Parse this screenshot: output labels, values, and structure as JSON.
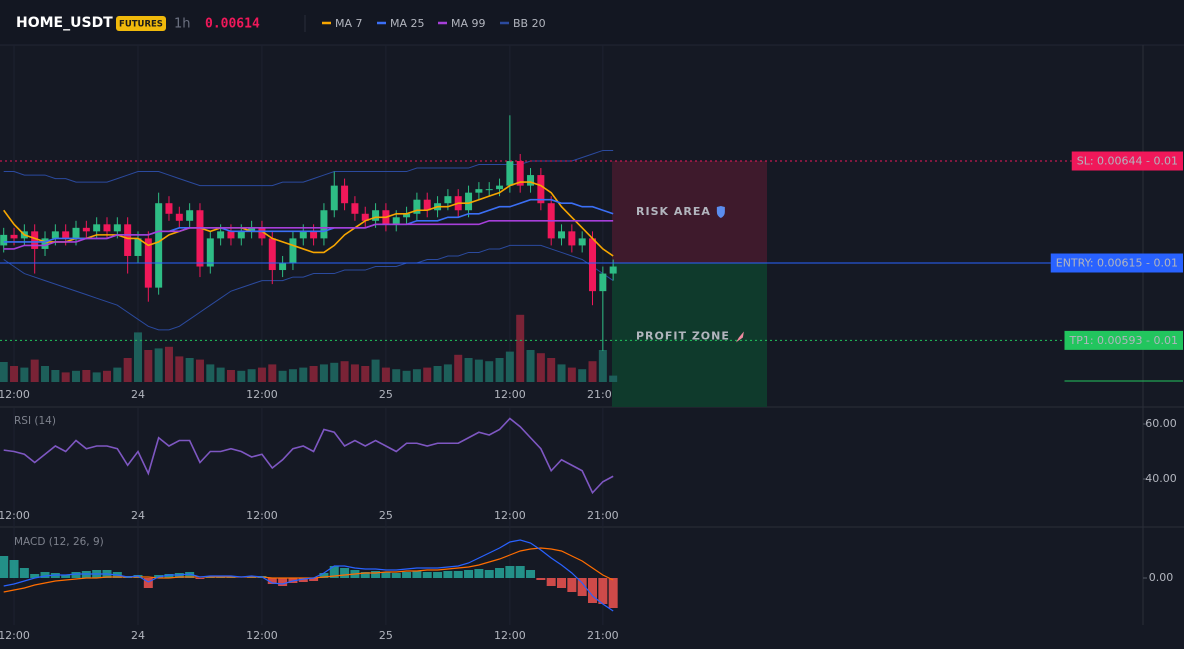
{
  "chart_data": [
    {
      "type": "candlestick",
      "title": "HOME_USDT",
      "badge": "FUTURES",
      "interval": "1h",
      "last_price": 0.00614,
      "categories": [
        null,
        "12:00",
        null,
        null,
        null,
        null,
        null,
        null,
        null,
        null,
        null,
        null,
        null,
        "24",
        null,
        null,
        null,
        null,
        null,
        null,
        null,
        null,
        null,
        null,
        null,
        "12:00",
        null,
        null,
        null,
        null,
        null,
        null,
        null,
        null,
        null,
        null,
        null,
        "25",
        null,
        null,
        null,
        null,
        null,
        null,
        null,
        null,
        null,
        null,
        null,
        "12:00",
        null,
        null,
        null,
        null,
        null,
        null,
        null,
        null,
        "21:00",
        null
      ],
      "open": [
        0.0062,
        0.00623,
        0.00622,
        0.00624,
        0.00619,
        0.00622,
        0.00624,
        0.00622,
        0.00625,
        0.00624,
        0.00626,
        0.00624,
        0.00626,
        0.00617,
        0.00622,
        0.00608,
        0.00632,
        0.00629,
        0.00627,
        0.0063,
        0.00614,
        0.00622,
        0.00624,
        0.00622,
        0.00624,
        0.00625,
        0.00622,
        0.00613,
        0.00615,
        0.00622,
        0.00624,
        0.00622,
        0.0063,
        0.00637,
        0.00632,
        0.00629,
        0.00627,
        0.0063,
        0.00626,
        0.00628,
        0.00629,
        0.00633,
        0.0063,
        0.00632,
        0.00634,
        0.0063,
        0.00635,
        0.00636,
        0.00636,
        0.00637,
        0.00644,
        0.00637,
        0.0064,
        0.00632,
        0.00622,
        0.00624,
        0.0062,
        0.00622,
        0.00607,
        0.00612
      ],
      "high": [
        0.00625,
        0.00625,
        0.00626,
        0.00626,
        0.00624,
        0.00626,
        0.00626,
        0.00627,
        0.00627,
        0.00628,
        0.00628,
        0.00628,
        0.00628,
        0.00624,
        0.00624,
        0.00635,
        0.00634,
        0.00631,
        0.00632,
        0.00632,
        0.00624,
        0.00626,
        0.00626,
        0.00626,
        0.00627,
        0.00627,
        0.00624,
        0.00617,
        0.00624,
        0.00626,
        0.00626,
        0.00632,
        0.00641,
        0.00639,
        0.00634,
        0.00631,
        0.00632,
        0.00632,
        0.0063,
        0.00631,
        0.00635,
        0.00635,
        0.00634,
        0.00636,
        0.00636,
        0.00637,
        0.00638,
        0.00638,
        0.00639,
        0.00657,
        0.00646,
        0.00642,
        0.00642,
        0.00634,
        0.00626,
        0.00626,
        0.00624,
        0.00624,
        0.00614,
        0.00616
      ],
      "low": [
        0.00618,
        0.0062,
        0.0062,
        0.00612,
        0.00617,
        0.0062,
        0.0062,
        0.0062,
        0.00622,
        0.00622,
        0.00622,
        0.00622,
        0.00612,
        0.00615,
        0.00604,
        0.00606,
        0.00627,
        0.00625,
        0.00625,
        0.00611,
        0.00612,
        0.0062,
        0.0062,
        0.0062,
        0.00622,
        0.0062,
        0.00609,
        0.00611,
        0.00613,
        0.0062,
        0.0062,
        0.0062,
        0.00628,
        0.0063,
        0.00627,
        0.00625,
        0.00625,
        0.00624,
        0.00624,
        0.00626,
        0.00627,
        0.00628,
        0.00628,
        0.0063,
        0.00628,
        0.00628,
        0.00633,
        0.00634,
        0.00634,
        0.00635,
        0.00635,
        0.00635,
        0.0063,
        0.0062,
        0.0062,
        0.00618,
        0.00618,
        0.00603,
        0.0059,
        0.0061
      ],
      "close": [
        0.00623,
        0.00622,
        0.00624,
        0.00619,
        0.00622,
        0.00624,
        0.00622,
        0.00625,
        0.00624,
        0.00626,
        0.00624,
        0.00626,
        0.00617,
        0.00622,
        0.00608,
        0.00632,
        0.00629,
        0.00627,
        0.0063,
        0.00614,
        0.00622,
        0.00624,
        0.00622,
        0.00624,
        0.00625,
        0.00622,
        0.00613,
        0.00615,
        0.00622,
        0.00624,
        0.00622,
        0.0063,
        0.00637,
        0.00632,
        0.00629,
        0.00627,
        0.0063,
        0.00626,
        0.00628,
        0.00629,
        0.00633,
        0.0063,
        0.00632,
        0.00634,
        0.0063,
        0.00635,
        0.00636,
        0.00636,
        0.00637,
        0.00644,
        0.00637,
        0.0064,
        0.00632,
        0.00622,
        0.00624,
        0.0062,
        0.00622,
        0.00607,
        0.00612,
        0.00614
      ],
      "up_color": "#2ebd85",
      "down_color": "#f0185a",
      "ylim": [
        0.0058,
        0.0068
      ],
      "volume": {
        "ylim": [
          0,
          100
        ],
        "up_color": "#1d5f5a",
        "down_color": "#7a2336",
        "values": [
          25,
          20,
          18,
          28,
          20,
          15,
          12,
          14,
          15,
          12,
          14,
          18,
          30,
          62,
          40,
          42,
          44,
          32,
          30,
          28,
          22,
          18,
          15,
          14,
          16,
          18,
          22,
          14,
          16,
          18,
          20,
          22,
          24,
          26,
          22,
          20,
          28,
          18,
          16,
          14,
          16,
          18,
          20,
          22,
          34,
          30,
          28,
          26,
          30,
          38,
          84,
          40,
          36,
          30,
          22,
          18,
          16,
          26,
          40,
          8
        ]
      },
      "series": [
        {
          "name": "MA 7",
          "color": "#f7a600",
          "values": [
            0.0063,
            0.00626,
            0.00623,
            0.00622,
            0.00621,
            0.00621,
            0.00621,
            0.00622,
            0.00622,
            0.00623,
            0.00623,
            0.00623,
            0.00622,
            0.00622,
            0.0062,
            0.00621,
            0.00623,
            0.00624,
            0.00625,
            0.00625,
            0.00624,
            0.00625,
            0.00625,
            0.00625,
            0.00624,
            0.00624,
            0.00622,
            0.00621,
            0.0062,
            0.00619,
            0.00618,
            0.00618,
            0.0062,
            0.00623,
            0.00625,
            0.00627,
            0.00628,
            0.00628,
            0.00629,
            0.00629,
            0.0063,
            0.0063,
            0.00631,
            0.00631,
            0.00632,
            0.00632,
            0.00633,
            0.00634,
            0.00635,
            0.00637,
            0.00638,
            0.00638,
            0.00637,
            0.00635,
            0.00631,
            0.00628,
            0.00625,
            0.00622,
            0.00619,
            0.00617
          ]
        },
        {
          "name": "MA 25",
          "color": "#3b6ff5",
          "values": [
            0.00621,
            0.00621,
            0.00621,
            0.00621,
            0.00621,
            0.00622,
            0.00622,
            0.00622,
            0.00622,
            0.00622,
            0.00622,
            0.00623,
            0.00623,
            0.00623,
            0.00623,
            0.00624,
            0.00624,
            0.00625,
            0.00625,
            0.00625,
            0.00625,
            0.00625,
            0.00624,
            0.00624,
            0.00624,
            0.00624,
            0.00624,
            0.00624,
            0.00624,
            0.00624,
            0.00624,
            0.00624,
            0.00625,
            0.00625,
            0.00625,
            0.00625,
            0.00626,
            0.00626,
            0.00626,
            0.00626,
            0.00627,
            0.00627,
            0.00627,
            0.00628,
            0.00628,
            0.00629,
            0.00629,
            0.0063,
            0.00631,
            0.00631,
            0.00632,
            0.00633,
            0.00633,
            0.00633,
            0.00632,
            0.00632,
            0.00631,
            0.00631,
            0.0063,
            0.00629
          ]
        },
        {
          "name": "MA 99",
          "color": "#a63fd9",
          "values": [
            0.00619,
            0.00619,
            0.0062,
            0.0062,
            0.0062,
            0.00621,
            0.00621,
            0.00621,
            0.00622,
            0.00622,
            0.00622,
            0.00623,
            0.00623,
            0.00623,
            0.00623,
            0.00624,
            0.00624,
            0.00624,
            0.00625,
            0.00625,
            0.00625,
            0.00625,
            0.00625,
            0.00625,
            0.00625,
            0.00625,
            0.00625,
            0.00625,
            0.00625,
            0.00625,
            0.00625,
            0.00625,
            0.00625,
            0.00625,
            0.00625,
            0.00625,
            0.00626,
            0.00626,
            0.00626,
            0.00626,
            0.00626,
            0.00626,
            0.00626,
            0.00626,
            0.00626,
            0.00626,
            0.00626,
            0.00627,
            0.00627,
            0.00627,
            0.00627,
            0.00627,
            0.00627,
            0.00627,
            0.00627,
            0.00627,
            0.00627,
            0.00627,
            0.00627,
            0.00627
          ]
        },
        {
          "name": "BB 20",
          "color": "#2b4a9e",
          "upper": [
            0.00641,
            0.00641,
            0.0064,
            0.0064,
            0.0064,
            0.00639,
            0.00639,
            0.00638,
            0.00638,
            0.00638,
            0.00638,
            0.00639,
            0.0064,
            0.00641,
            0.00641,
            0.00641,
            0.0064,
            0.00639,
            0.00638,
            0.00637,
            0.00637,
            0.00637,
            0.00637,
            0.00637,
            0.00637,
            0.00637,
            0.00637,
            0.00638,
            0.00638,
            0.00638,
            0.00639,
            0.0064,
            0.00641,
            0.00641,
            0.00641,
            0.00641,
            0.00641,
            0.00641,
            0.00641,
            0.00641,
            0.00642,
            0.00642,
            0.00642,
            0.00642,
            0.00642,
            0.00642,
            0.00643,
            0.00643,
            0.00643,
            0.00643,
            0.00643,
            0.00644,
            0.00644,
            0.00644,
            0.00644,
            0.00644,
            0.00645,
            0.00646,
            0.00647,
            0.00647
          ],
          "lower": [
            0.00616,
            0.00614,
            0.00612,
            0.00611,
            0.0061,
            0.00609,
            0.00608,
            0.00607,
            0.00606,
            0.00605,
            0.00604,
            0.00603,
            0.00601,
            0.00599,
            0.00597,
            0.00596,
            0.00596,
            0.00597,
            0.00599,
            0.00601,
            0.00603,
            0.00605,
            0.00607,
            0.00608,
            0.00609,
            0.0061,
            0.0061,
            0.0061,
            0.00611,
            0.00611,
            0.00612,
            0.00612,
            0.00612,
            0.00613,
            0.00613,
            0.00613,
            0.00614,
            0.00614,
            0.00614,
            0.00615,
            0.00615,
            0.00616,
            0.00616,
            0.00617,
            0.00617,
            0.00618,
            0.00618,
            0.00619,
            0.00619,
            0.0062,
            0.0062,
            0.0062,
            0.0062,
            0.00619,
            0.00618,
            0.00617,
            0.00616,
            0.00614,
            0.00612,
            0.0061
          ]
        }
      ],
      "levels": [
        {
          "label": "SL: 0.00644 - 0.01",
          "value": 0.00644,
          "color": "#f0185a",
          "text_color": "#ffffff",
          "line": "dotted"
        },
        {
          "label": "ENTRY: 0.00615 - 0.01",
          "value": 0.00615,
          "color": "#2962ff",
          "text_color": "#ffffff",
          "line": "solid"
        },
        {
          "label": "TP1: 0.00593 - 0.01",
          "value": 0.00593,
          "color": "#22c55e",
          "text_color": "#0b1a10",
          "line": "dotted"
        }
      ],
      "zones": [
        {
          "label": "RISK AREA",
          "color": "#f0185a",
          "fill": "#3e1a2c",
          "icon": "shield"
        },
        {
          "label": "PROFIT ZONE",
          "color": "#22c55e",
          "fill": "#0f3a2c",
          "icon": "rocket"
        }
      ]
    },
    {
      "type": "line",
      "title": "RSI (14)",
      "color": "#7e57c2",
      "ylim": [
        25,
        66
      ],
      "yticks": [
        {
          "value": 60,
          "label": "60.00"
        },
        {
          "value": 40,
          "label": "40.00"
        }
      ],
      "values": [
        50.5,
        50,
        49,
        46,
        49,
        52,
        50,
        54,
        51,
        52,
        52,
        51,
        45,
        50,
        42,
        55,
        52,
        54,
        54,
        46,
        50,
        50,
        51,
        50,
        48,
        49,
        44,
        47,
        51,
        52,
        50,
        58,
        57,
        52,
        54,
        52,
        54,
        52,
        50,
        53,
        53,
        52,
        53,
        53,
        53,
        55,
        57,
        56,
        58,
        62,
        59,
        55,
        51,
        43,
        47,
        45,
        43,
        35,
        39,
        41
      ]
    },
    {
      "type": "macd",
      "title": "MACD (12, 26, 9)",
      "ylim": [
        -4.7e-05,
        5e-05
      ],
      "yticks": [
        {
          "value": 0,
          "label": "0.00"
        }
      ],
      "up_color": "#26a69a",
      "down_color": "#ef5350",
      "histogram": [
        2.2e-05,
        1.8e-05,
        1e-05,
        4e-06,
        6e-06,
        5e-06,
        3e-06,
        6e-06,
        7e-06,
        8e-06,
        8e-06,
        6e-06,
        2e-06,
        3e-06,
        -1e-05,
        3e-06,
        4e-06,
        5e-06,
        6e-06,
        -1e-06,
        2e-06,
        1e-06,
        1e-06,
        0,
        1e-06,
        2e-06,
        -6e-06,
        -8e-06,
        -5e-06,
        -4e-06,
        -3e-06,
        5e-06,
        1.2e-05,
        1e-05,
        8e-06,
        6e-06,
        7e-06,
        6e-06,
        5e-06,
        6e-06,
        7e-06,
        6e-06,
        6e-06,
        7e-06,
        7e-06,
        8e-06,
        9e-06,
        8e-06,
        1e-05,
        1.2e-05,
        1.2e-05,
        8e-06,
        -2e-06,
        -8e-06,
        -1e-05,
        -1.4e-05,
        -1.8e-05,
        -2.5e-05,
        -2.6e-05,
        -3e-05
      ],
      "macd": {
        "color": "#2962ff",
        "values": [
          -8e-06,
          -6e-06,
          -3e-06,
          0,
          2e-06,
          3e-06,
          3e-06,
          4e-06,
          4e-06,
          4e-06,
          4e-06,
          3e-06,
          1e-06,
          2e-06,
          -4e-06,
          1e-06,
          3e-06,
          3e-06,
          4e-06,
          1e-06,
          2e-06,
          2e-06,
          2e-06,
          1e-06,
          2e-06,
          1e-06,
          -5e-06,
          -6e-06,
          -3e-06,
          -1e-06,
          0,
          5e-06,
          1.2e-05,
          1.2e-05,
          1e-05,
          9e-06,
          9e-06,
          8e-06,
          8e-06,
          9e-06,
          1e-05,
          1e-05,
          1e-05,
          1.1e-05,
          1.2e-05,
          1.5e-05,
          2e-05,
          2.5e-05,
          3e-05,
          3.6e-05,
          3.8e-05,
          3.5e-05,
          2.8e-05,
          2e-05,
          1.3e-05,
          5e-06,
          -5e-06,
          -1.8e-05,
          -2.6e-05,
          -3.3e-05
        ]
      },
      "signal": {
        "color": "#ff6d00",
        "values": [
          -1.4e-05,
          -1.2e-05,
          -1e-05,
          -7e-06,
          -5e-06,
          -3e-06,
          -2e-06,
          -1e-06,
          0,
          0,
          1e-06,
          1e-06,
          1e-06,
          1e-06,
          1e-06,
          0,
          0,
          1e-06,
          1e-06,
          1e-06,
          1e-06,
          1e-06,
          1e-06,
          1e-06,
          1e-06,
          1e-06,
          0,
          0,
          0,
          0,
          0,
          1e-06,
          2e-06,
          3e-06,
          4e-06,
          5e-06,
          5e-06,
          6e-06,
          6e-06,
          7e-06,
          7e-06,
          8e-06,
          8e-06,
          9e-06,
          1e-05,
          1.1e-05,
          1.3e-05,
          1.6e-05,
          1.9e-05,
          2.3e-05,
          2.7e-05,
          2.9e-05,
          3e-05,
          2.9e-05,
          2.7e-05,
          2.2e-05,
          1.7e-05,
          1e-05,
          3e-06,
          -2e-06
        ]
      }
    }
  ]
}
